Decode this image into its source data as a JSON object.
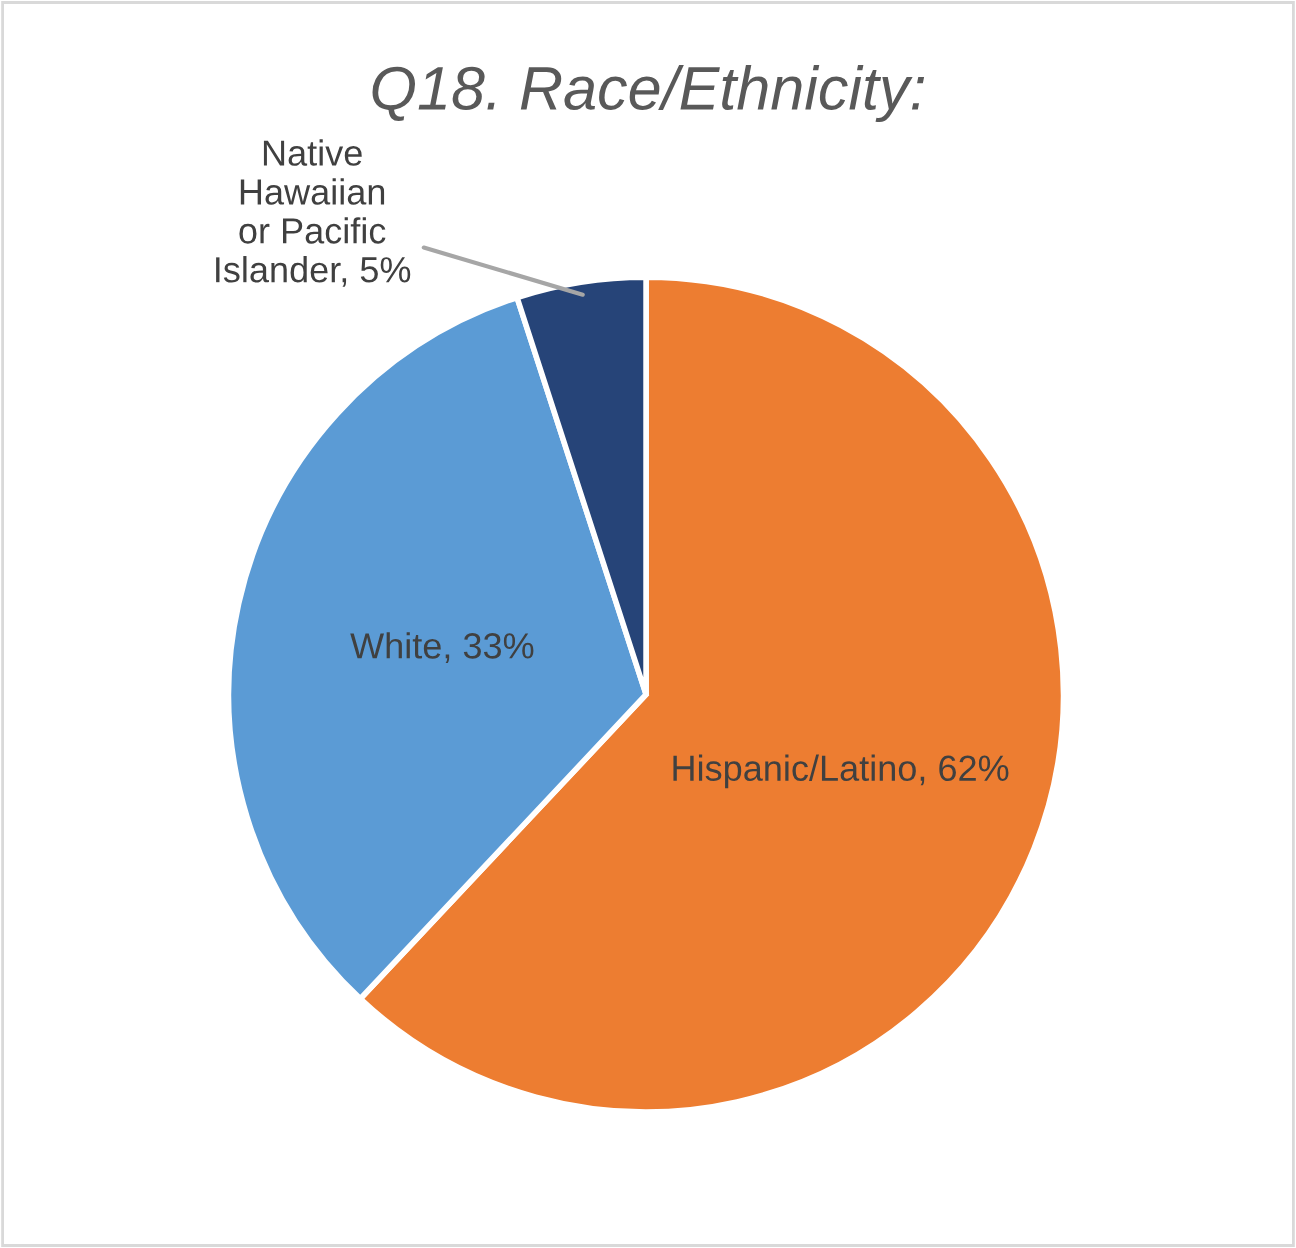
{
  "chart_data": {
    "type": "pie",
    "title": "Q18. Race/Ethnicity:",
    "categories": [
      "Hispanic/Latino",
      "White",
      "Native\nHawaiian\nor Pacific\nIslander"
    ],
    "value_labels": [
      "62%",
      "33%",
      "5%"
    ],
    "values": [
      62,
      33,
      5
    ],
    "colors": [
      "#ed7d31",
      "#5b9bd5",
      "#264478"
    ]
  }
}
